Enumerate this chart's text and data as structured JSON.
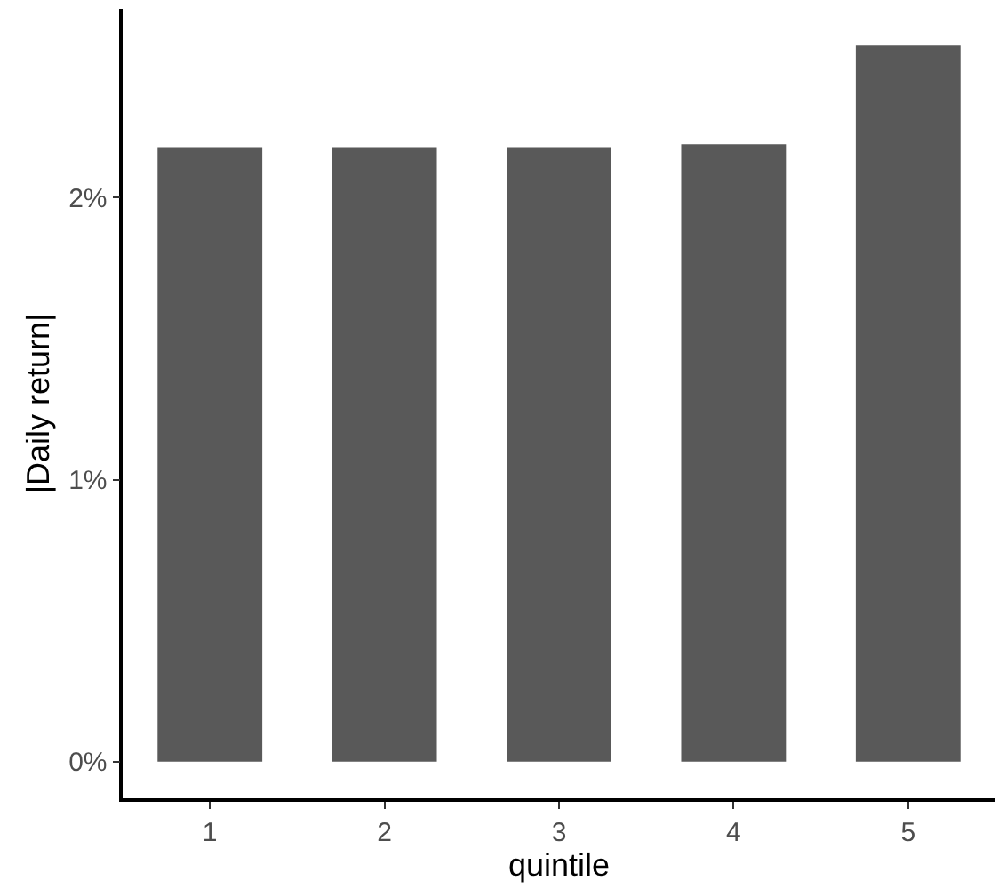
{
  "chart_data": {
    "type": "bar",
    "xlabel": "quintile",
    "ylabel": "|Daily return|",
    "categories": [
      "1",
      "2",
      "3",
      "4",
      "5"
    ],
    "values": [
      2.18,
      2.18,
      2.18,
      2.19,
      2.54
    ],
    "color": "#595959",
    "ylim": [
      -0.13,
      2.67
    ],
    "yticks": [
      {
        "value": 0,
        "label": "0%"
      },
      {
        "value": 1,
        "label": "1%"
      },
      {
        "value": 2,
        "label": "2%"
      }
    ],
    "grid": false
  }
}
